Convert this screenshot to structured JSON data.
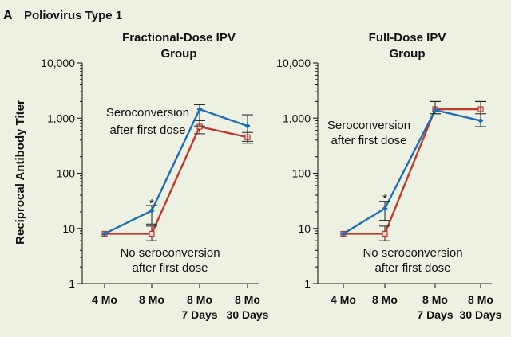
{
  "panel": {
    "letter": "A",
    "title": "Poliovirus Type 1"
  },
  "ylabel": "Reciprocal Antibody Titer",
  "colors": {
    "seroconversion": "#1f6fb5",
    "no_seroconversion": "#c0392b",
    "background": "#ecf1e2"
  },
  "chart_data": [
    {
      "type": "line",
      "title_lines": [
        "Fractional-Dose IPV",
        "Group"
      ],
      "y_scale": "log",
      "ylim": [
        1,
        10000
      ],
      "y_ticks": [
        "1",
        "10",
        "100",
        "1,000",
        "10,000"
      ],
      "categories": [
        [
          "4 Mo"
        ],
        [
          "8 Mo"
        ],
        [
          "8 Mo",
          "7 Days"
        ],
        [
          "8 Mo",
          "30 Days"
        ]
      ],
      "series": [
        {
          "key": "seroconversion",
          "values": [
            8,
            21,
            1450,
            720
          ],
          "err_low": [
            null,
            12,
            720,
            380
          ],
          "err_high": [
            null,
            26,
            1750,
            1150
          ]
        },
        {
          "key": "no_seroconversion",
          "values": [
            8,
            8,
            700,
            450
          ],
          "err_low": [
            null,
            6,
            520,
            350
          ],
          "err_high": [
            null,
            11,
            900,
            550
          ]
        }
      ],
      "annotations": {
        "asterisk": "*",
        "seroconversion": [
          "Seroconversion",
          "after first dose"
        ],
        "no_seroconversion": [
          "No seroconversion",
          "after first dose"
        ]
      }
    },
    {
      "type": "line",
      "title_lines": [
        "Full-Dose IPV",
        "Group"
      ],
      "y_scale": "log",
      "ylim": [
        1,
        10000
      ],
      "y_ticks": [
        "1",
        "10",
        "100",
        "1,000",
        "10,000"
      ],
      "categories": [
        [
          "4 Mo"
        ],
        [
          "8 Mo"
        ],
        [
          "8 Mo",
          "7 Days"
        ],
        [
          "8 Mo",
          "30 Days"
        ]
      ],
      "series": [
        {
          "key": "seroconversion",
          "values": [
            8,
            23,
            1400,
            900
          ],
          "err_low": [
            null,
            14,
            1200,
            700
          ],
          "err_high": [
            null,
            31,
            2000,
            2000
          ]
        },
        {
          "key": "no_seroconversion",
          "values": [
            8,
            8,
            1450,
            1450
          ],
          "err_low": [
            null,
            6,
            1200,
            1200
          ],
          "err_high": [
            null,
            11,
            2000,
            2000
          ]
        }
      ],
      "annotations": {
        "asterisk": "*",
        "seroconversion": [
          "Seroconversion",
          "after first dose"
        ],
        "no_seroconversion": [
          "No seroconversion",
          "after first dose"
        ]
      }
    }
  ]
}
